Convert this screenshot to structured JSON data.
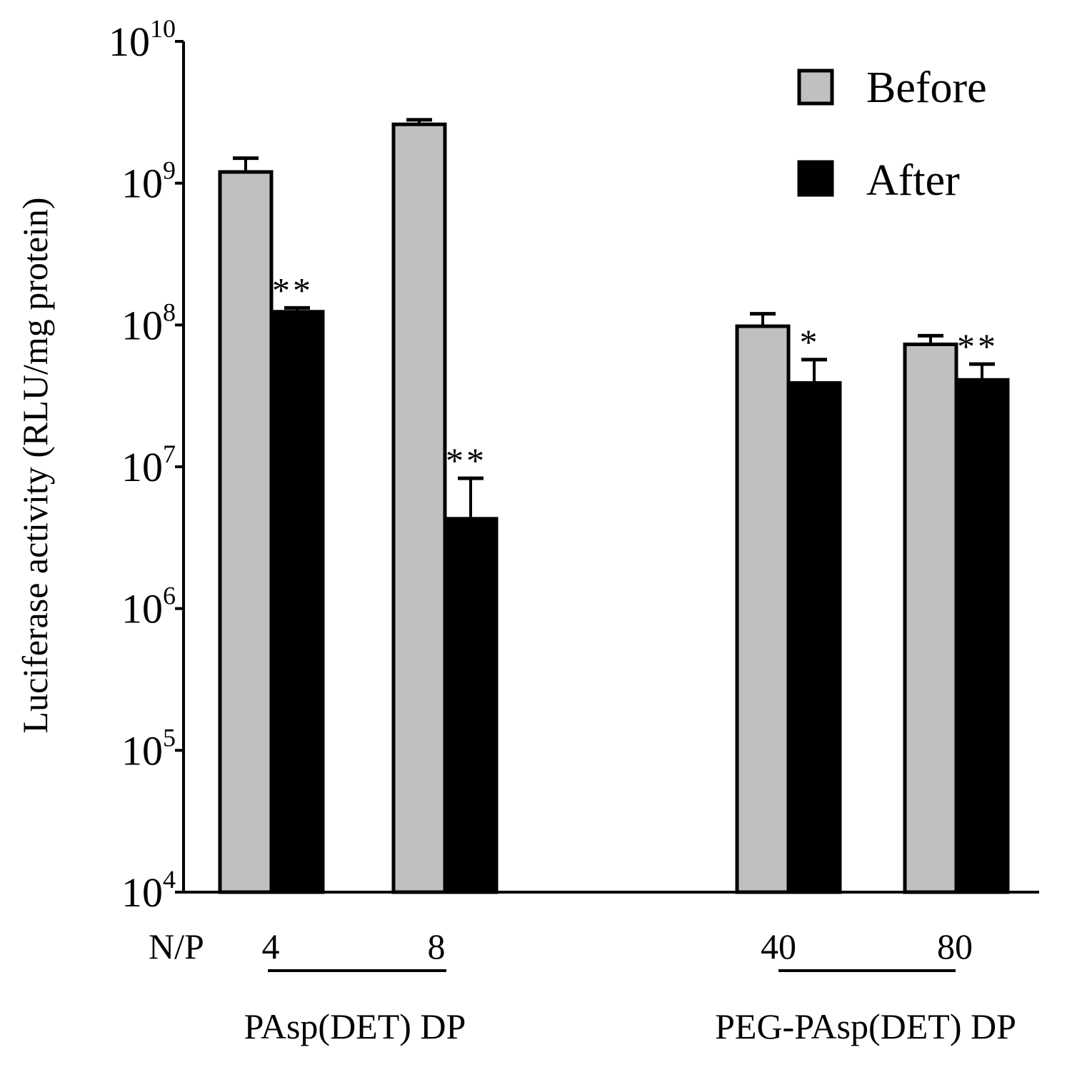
{
  "chart_data": {
    "type": "bar",
    "scale": "log",
    "ylabel": "Luciferase activity (RLU/mg protein)",
    "ylim": [
      10000,
      10000000000
    ],
    "y_ticks": [
      {
        "value": 10000,
        "base": "10",
        "exp": "4"
      },
      {
        "value": 100000,
        "base": "10",
        "exp": "5"
      },
      {
        "value": 1000000,
        "base": "10",
        "exp": "6"
      },
      {
        "value": 10000000,
        "base": "10",
        "exp": "7"
      },
      {
        "value": 100000000,
        "base": "10",
        "exp": "8"
      },
      {
        "value": 1000000000,
        "base": "10",
        "exp": "9"
      },
      {
        "value": 10000000000,
        "base": "10",
        "exp": "10"
      }
    ],
    "x_prefix": "N/P",
    "categories": [
      "4",
      "8",
      "40",
      "80"
    ],
    "groups": [
      {
        "label": "PAsp(DET) DP",
        "categories": [
          "4",
          "8"
        ]
      },
      {
        "label": "PEG-PAsp(DET) DP",
        "categories": [
          "40",
          "80"
        ]
      }
    ],
    "series": [
      {
        "name": "Before",
        "color": "#c0c0c0",
        "values": [
          1200000000,
          2600000000,
          98000000,
          73000000
        ],
        "error_upper": [
          1500000000,
          2800000000,
          120000000,
          84000000
        ]
      },
      {
        "name": "After",
        "color": "#000000",
        "values": [
          124000000,
          4300000,
          39000000,
          41000000
        ],
        "error_upper": [
          132000000,
          8300000,
          57000000,
          53000000
        ]
      }
    ],
    "significance": [
      "**",
      "**",
      "*",
      "**"
    ],
    "legend": {
      "position": "top-right"
    }
  }
}
